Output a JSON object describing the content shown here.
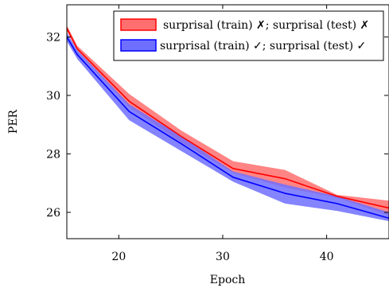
{
  "chart_data": {
    "type": "line",
    "xlabel": "Epoch",
    "ylabel": "PER",
    "xlim": [
      15,
      46
    ],
    "ylim": [
      25.1,
      33.1
    ],
    "xticks": [
      20,
      30,
      40
    ],
    "yticks": [
      26,
      28,
      30,
      32
    ],
    "grid": false,
    "legend_position": "top-right",
    "x": [
      15,
      16,
      21,
      26,
      31,
      36,
      41,
      46
    ],
    "series": [
      {
        "name": "surprisal (train) ✗; surprisal (test) ✗",
        "color": "#ff0000",
        "fill": "#ff6f6f",
        "values": [
          32.3,
          31.6,
          29.8,
          28.6,
          27.5,
          27.15,
          26.55,
          26.15
        ],
        "lower": [
          32.2,
          31.5,
          29.6,
          28.4,
          27.35,
          26.85,
          26.5,
          25.9
        ],
        "upper": [
          32.4,
          31.7,
          30.05,
          28.8,
          27.75,
          27.45,
          26.6,
          26.4
        ]
      },
      {
        "name": "surprisal (train) ✓; surprisal (test) ✓",
        "color": "#0000ff",
        "fill": "#6f6fff",
        "values": [
          32.0,
          31.4,
          29.45,
          28.35,
          27.2,
          26.65,
          26.3,
          25.8
        ],
        "lower": [
          31.85,
          31.25,
          29.15,
          28.1,
          27.05,
          26.3,
          26.05,
          25.7
        ],
        "upper": [
          32.15,
          31.55,
          29.7,
          28.6,
          27.4,
          26.95,
          26.55,
          26.0
        ]
      }
    ]
  }
}
